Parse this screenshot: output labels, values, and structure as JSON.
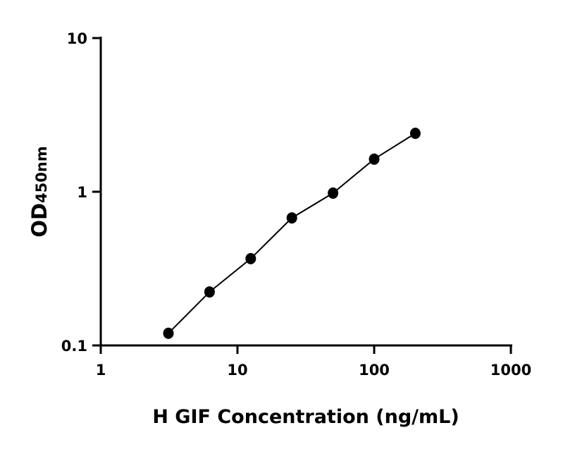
{
  "chart_data": {
    "type": "scatter",
    "title": "",
    "xlabel": "H GIF Concentration (ng/mL)",
    "ylabel_main": "OD",
    "ylabel_sub": "450nm",
    "xscale": "log",
    "yscale": "log",
    "xlim": [
      1,
      1000
    ],
    "ylim": [
      0.1,
      10
    ],
    "xticks": [
      "1",
      "10",
      "100",
      "1000"
    ],
    "xtick_values": [
      1,
      10,
      100,
      1000
    ],
    "yticks": [
      "0.1",
      "1",
      "10"
    ],
    "ytick_values": [
      0.1,
      1,
      10
    ],
    "grid": false,
    "fit_line": true,
    "color": "#000000",
    "series": [
      {
        "x": [
          3.125,
          6.25,
          12.5,
          25,
          50,
          100,
          200
        ],
        "y": [
          0.12,
          0.223,
          0.367,
          0.676,
          0.98,
          1.63,
          2.4
        ]
      }
    ]
  }
}
